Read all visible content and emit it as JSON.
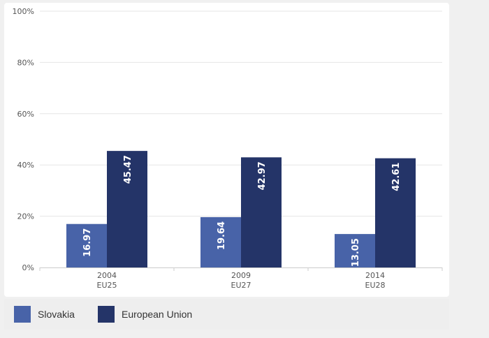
{
  "chart_data": {
    "type": "bar",
    "categories": [
      {
        "line1": "2004",
        "line2": "EU25"
      },
      {
        "line1": "2009",
        "line2": "EU27"
      },
      {
        "line1": "2014",
        "line2": "EU28"
      }
    ],
    "series": [
      {
        "name": "Slovakia",
        "color": "#4863a8",
        "values": [
          16.97,
          19.64,
          13.05
        ],
        "labels": [
          "16.97",
          "19.64",
          "13.05"
        ]
      },
      {
        "name": "European Union",
        "color": "#243468",
        "values": [
          45.47,
          42.97,
          42.61
        ],
        "labels": [
          "45.47",
          "42.97",
          "42.61"
        ]
      }
    ],
    "y_ticks": [
      "0%",
      "20%",
      "40%",
      "60%",
      "80%",
      "100%"
    ],
    "ylim": [
      0,
      100
    ],
    "grid": true,
    "legend_position": "bottom-left"
  },
  "legend": {
    "items": [
      {
        "label": "Slovakia",
        "color": "#4863a8"
      },
      {
        "label": "European Union",
        "color": "#243468"
      }
    ]
  }
}
